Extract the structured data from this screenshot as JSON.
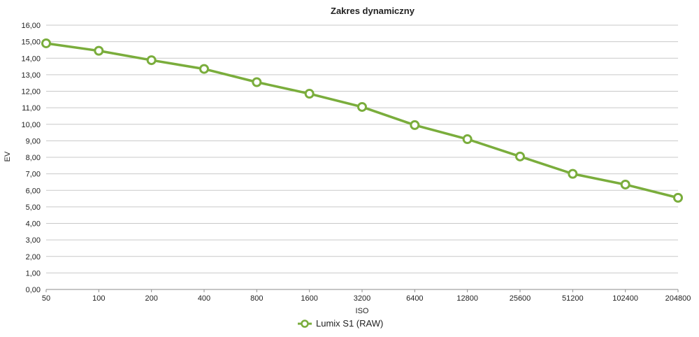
{
  "chart_data": {
    "type": "line",
    "title": "Zakres dynamiczny",
    "xlabel": "ISO",
    "ylabel": "EV",
    "categories": [
      "50",
      "100",
      "200",
      "400",
      "800",
      "1600",
      "3200",
      "6400",
      "12800",
      "25600",
      "51200",
      "102400",
      "204800"
    ],
    "series": [
      {
        "name": "Lumix S1 (RAW)",
        "values": [
          14.9,
          14.45,
          13.88,
          13.35,
          12.55,
          11.85,
          11.05,
          9.95,
          9.1,
          8.05,
          7.0,
          6.35,
          5.55
        ],
        "color": "#7aad3c"
      }
    ],
    "ylim": [
      0,
      16
    ],
    "yticks": [
      "0,00",
      "1,00",
      "2,00",
      "3,00",
      "4,00",
      "5,00",
      "6,00",
      "7,00",
      "8,00",
      "9,00",
      "10,00",
      "11,00",
      "12,00",
      "13,00",
      "14,00",
      "15,00",
      "16,00"
    ],
    "grid": true,
    "legend_position": "bottom",
    "gridline_color": "#c9c9c9",
    "axis_color": "#8c8c8c"
  }
}
